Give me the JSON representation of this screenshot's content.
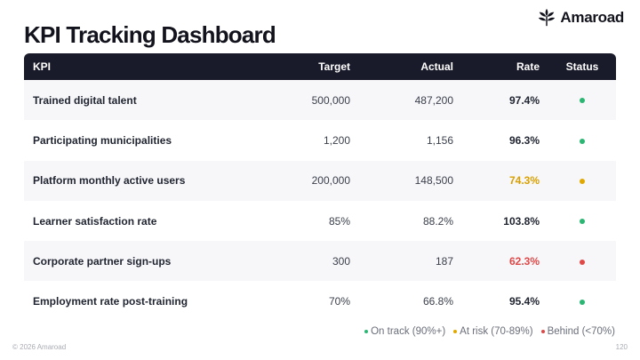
{
  "header": {
    "title": "KPI Tracking Dashboard"
  },
  "brand": {
    "name": "Amaroad",
    "icon": "leaf-logo-icon"
  },
  "table": {
    "columns": [
      "KPI",
      "Target",
      "Actual",
      "Rate",
      "Status"
    ],
    "rows": [
      {
        "kpi": "Trained digital talent",
        "target": "500,000",
        "actual": "487,200",
        "rate": "97.4%",
        "status": "on-track"
      },
      {
        "kpi": "Participating municipalities",
        "target": "1,200",
        "actual": "1,156",
        "rate": "96.3%",
        "status": "on-track"
      },
      {
        "kpi": "Platform monthly active users",
        "target": "200,000",
        "actual": "148,500",
        "rate": "74.3%",
        "status": "at-risk"
      },
      {
        "kpi": "Learner satisfaction rate",
        "target": "85%",
        "actual": "88.2%",
        "rate": "103.8%",
        "status": "on-track"
      },
      {
        "kpi": "Corporate partner sign-ups",
        "target": "300",
        "actual": "187",
        "rate": "62.3%",
        "status": "behind"
      },
      {
        "kpi": "Employment rate post-training",
        "target": "70%",
        "actual": "66.8%",
        "rate": "95.4%",
        "status": "on-track"
      }
    ]
  },
  "status_colors": {
    "on-track": "#2bb673",
    "at-risk": "#e0a800",
    "behind": "#e04848"
  },
  "rate_text_colors": {
    "on-track": "#1f2430",
    "at-risk": "#d9a000",
    "behind": "#e04848"
  },
  "legend": [
    {
      "status": "on-track",
      "label": "On track (90%+)"
    },
    {
      "status": "at-risk",
      "label": "At risk (70-89%)"
    },
    {
      "status": "behind",
      "label": "Behind (<70%)"
    }
  ],
  "footer": {
    "copyright": "© 2026 Amaroad",
    "page_number": "120"
  }
}
